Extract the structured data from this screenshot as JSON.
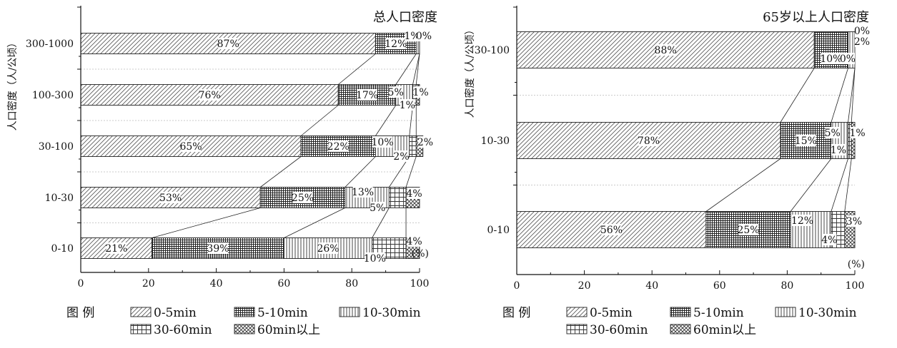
{
  "legend": {
    "title": "图 例",
    "items": [
      {
        "label": "0-5min",
        "pattern": "hatch"
      },
      {
        "label": "5-10min",
        "pattern": "grid"
      },
      {
        "label": "10-30min",
        "pattern": "vlines"
      },
      {
        "label": "30-60min",
        "pattern": "sqgrid"
      },
      {
        "label": "60min以上",
        "pattern": "cross"
      }
    ]
  },
  "chart_data": [
    {
      "type": "bar",
      "stacked": true,
      "orientation": "horizontal",
      "title": "总人口密度",
      "ylabel": "人口密度（人/公顷）",
      "xlabel": "",
      "unit_label": "(%)",
      "xlim": [
        0,
        100
      ],
      "xticks": [
        "0",
        "20",
        "40",
        "60",
        "80",
        "100"
      ],
      "categories": [
        "300-1000",
        "100-300",
        "30-100",
        "10-30",
        "0-10"
      ],
      "series": [
        {
          "name": "0-5min",
          "values": [
            87,
            76,
            65,
            53,
            21
          ]
        },
        {
          "name": "5-10min",
          "values": [
            12,
            17,
            22,
            25,
            39
          ]
        },
        {
          "name": "10-30min",
          "values": [
            1,
            5,
            10,
            13,
            26
          ]
        },
        {
          "name": "30-60min",
          "values": [
            0,
            1,
            2,
            5,
            10
          ]
        },
        {
          "name": "60min以上",
          "values": [
            0,
            1,
            2,
            4,
            4
          ]
        }
      ],
      "labels": [
        [
          "87%",
          "12%",
          "1%",
          "",
          "0%"
        ],
        [
          "76%",
          "17%",
          "5%",
          "1%",
          "1%"
        ],
        [
          "65%",
          "22%",
          "10%",
          "2%",
          "2%"
        ],
        [
          "53%",
          "25%",
          "13%",
          "5%",
          "4%"
        ],
        [
          "21%",
          "39%",
          "26%",
          "10%",
          "4%"
        ]
      ]
    },
    {
      "type": "bar",
      "stacked": true,
      "orientation": "horizontal",
      "title": "65岁以上人口密度",
      "ylabel": "人口密度（人/公顷）",
      "xlabel": "",
      "unit_label": "(%)",
      "xlim": [
        0,
        100
      ],
      "xticks": [
        "0",
        "20",
        "40",
        "60",
        "80",
        "100"
      ],
      "categories": [
        "30-100",
        "10-30",
        "0-10"
      ],
      "series": [
        {
          "name": "0-5min",
          "values": [
            88,
            78,
            56
          ]
        },
        {
          "name": "5-10min",
          "values": [
            10,
            15,
            25
          ]
        },
        {
          "name": "10-30min",
          "values": [
            2,
            5,
            12
          ]
        },
        {
          "name": "30-60min",
          "values": [
            0,
            1,
            4
          ]
        },
        {
          "name": "60min以上",
          "values": [
            0,
            1,
            3
          ]
        }
      ],
      "labels": [
        [
          "88%",
          "10%",
          "2%",
          "0%",
          "0%"
        ],
        [
          "78%",
          "15%",
          "5%",
          "1%",
          "1%"
        ],
        [
          "56%",
          "25%",
          "12%",
          "4%",
          "3%"
        ]
      ]
    }
  ]
}
